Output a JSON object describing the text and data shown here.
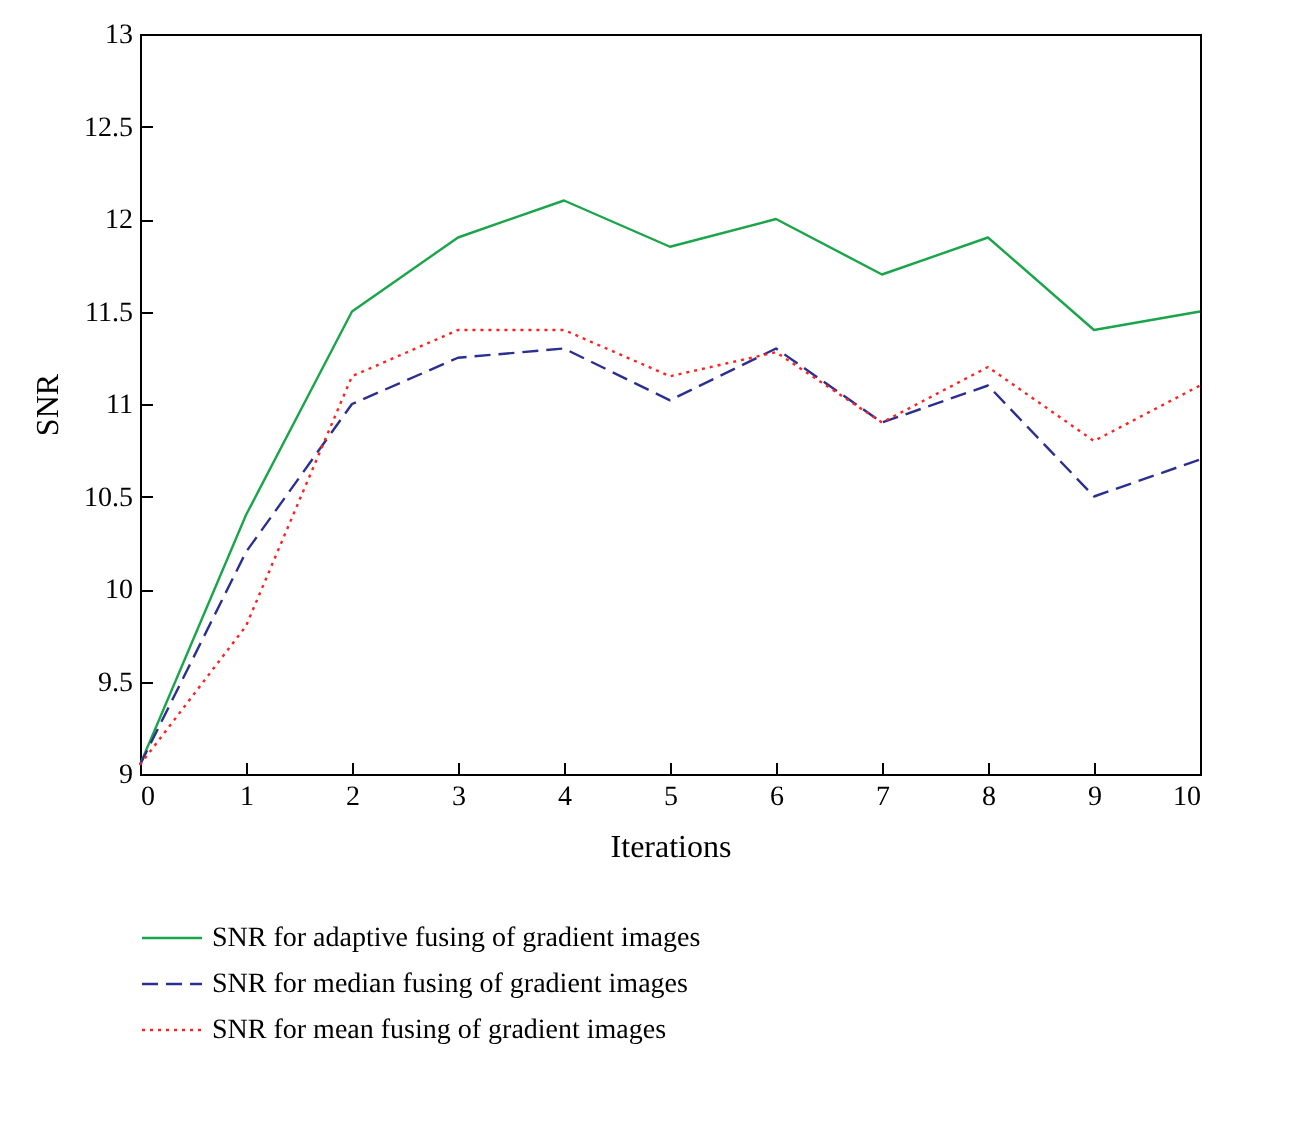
{
  "chart_data": {
    "type": "line",
    "xlabel": "Iterations",
    "ylabel": "SNR",
    "x": [
      0,
      1,
      2,
      3,
      4,
      5,
      6,
      7,
      8,
      9,
      10
    ],
    "series": [
      {
        "name": "SNR for adaptive fusing of gradient images",
        "color": "#1aa54a",
        "line_style": "solid",
        "values": [
          9.05,
          10.4,
          11.5,
          11.9,
          12.1,
          11.85,
          12.0,
          11.7,
          11.9,
          11.4,
          11.5
        ]
      },
      {
        "name": "SNR for median fusing of gradient images",
        "color": "#2b2f8f",
        "line_style": "dashed",
        "values": [
          9.05,
          10.2,
          11.0,
          11.25,
          11.3,
          11.02,
          11.3,
          10.9,
          11.1,
          10.5,
          10.7
        ]
      },
      {
        "name": "SNR for mean fusing of gradient images",
        "color": "#ff2020",
        "line_style": "dotted",
        "values": [
          9.05,
          9.8,
          11.15,
          11.4,
          11.4,
          11.15,
          11.28,
          10.9,
          11.2,
          10.8,
          11.1
        ]
      }
    ],
    "xlim": [
      0,
      10
    ],
    "xticks": [
      0,
      1,
      2,
      3,
      4,
      5,
      6,
      7,
      8,
      9,
      10
    ],
    "ylim": [
      9,
      13
    ],
    "yticks": [
      9,
      9.5,
      10,
      10.5,
      11,
      11.5,
      12,
      12.5,
      13
    ],
    "grid": false,
    "legend": "bottom",
    "marker": "none"
  }
}
